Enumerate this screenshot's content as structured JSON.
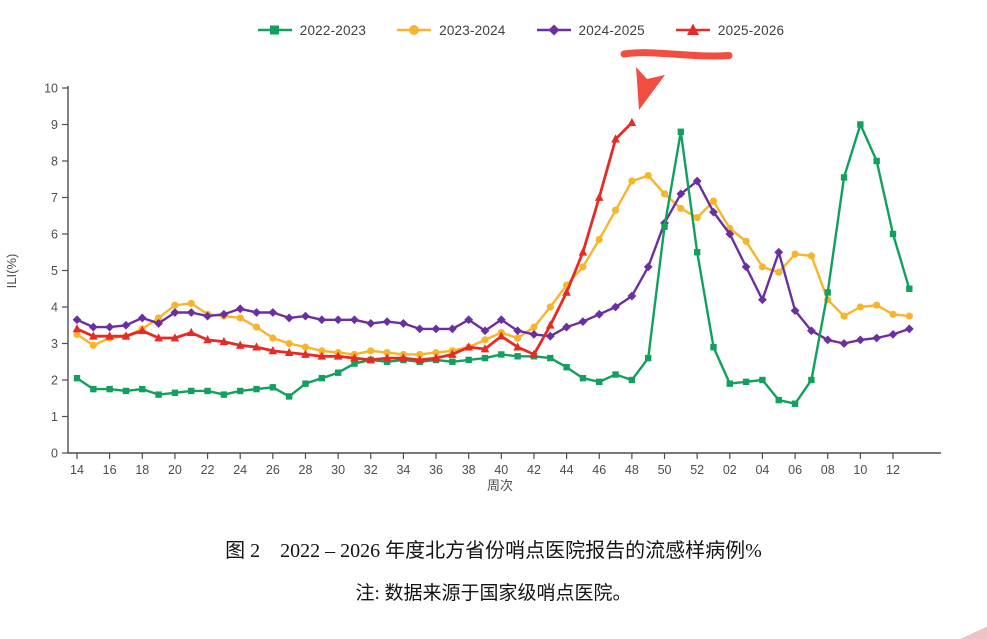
{
  "page": {
    "caption_line1": "图 2　2022 – 2026 年度北方省份哨点医院报告的流感样病例%",
    "caption_line2": "注: 数据来源于国家级哨点医院。"
  },
  "chart_data": {
    "type": "line",
    "title": "",
    "xlabel": "周次",
    "ylabel": "ILI(%)",
    "ylim": [
      0,
      10
    ],
    "y_ticks": [
      0,
      1,
      2,
      3,
      4,
      5,
      6,
      7,
      8,
      9,
      10
    ],
    "grid": false,
    "legend_position": "top",
    "weeks": [
      "14",
      "15",
      "16",
      "17",
      "18",
      "19",
      "20",
      "21",
      "22",
      "23",
      "24",
      "25",
      "26",
      "27",
      "28",
      "29",
      "30",
      "31",
      "32",
      "33",
      "34",
      "35",
      "36",
      "37",
      "38",
      "39",
      "40",
      "41",
      "42",
      "43",
      "44",
      "45",
      "46",
      "47",
      "48",
      "49",
      "50",
      "51",
      "52",
      "01",
      "02",
      "03",
      "04",
      "05",
      "06",
      "07",
      "08",
      "09",
      "10",
      "11",
      "12",
      "13"
    ],
    "series": [
      {
        "name": "2022-2023",
        "color": "#12a05e",
        "marker": "square",
        "line_width": 2.4,
        "values": [
          2.05,
          1.75,
          1.75,
          1.7,
          1.75,
          1.6,
          1.65,
          1.7,
          1.7,
          1.6,
          1.7,
          1.75,
          1.8,
          1.55,
          1.9,
          2.05,
          2.2,
          2.45,
          2.55,
          2.5,
          2.55,
          2.5,
          2.55,
          2.5,
          2.55,
          2.6,
          2.7,
          2.65,
          2.65,
          2.6,
          2.35,
          2.05,
          1.95,
          2.15,
          2.0,
          2.6,
          6.2,
          8.8,
          5.5,
          2.9,
          1.9,
          1.95,
          2.0,
          1.45,
          1.35,
          2.0,
          4.4,
          7.55,
          9.0,
          8.0,
          6.0,
          4.5
        ]
      },
      {
        "name": "2023-2024",
        "color": "#f7b52c",
        "marker": "circle",
        "line_width": 2.4,
        "values": [
          3.25,
          2.95,
          3.15,
          3.2,
          3.4,
          3.7,
          4.05,
          4.1,
          3.8,
          3.75,
          3.7,
          3.45,
          3.15,
          3.0,
          2.9,
          2.8,
          2.75,
          2.7,
          2.8,
          2.75,
          2.7,
          2.7,
          2.75,
          2.8,
          2.9,
          3.1,
          3.3,
          3.15,
          3.45,
          4.0,
          4.6,
          5.1,
          5.85,
          6.65,
          7.45,
          7.6,
          7.1,
          6.7,
          6.45,
          6.9,
          6.15,
          5.8,
          5.1,
          4.95,
          5.45,
          5.4,
          4.2,
          3.75,
          4.0,
          4.05,
          3.8,
          3.75
        ]
      },
      {
        "name": "2024-2025",
        "color": "#6b2fa0",
        "marker": "diamond",
        "line_width": 2.4,
        "values": [
          3.65,
          3.45,
          3.45,
          3.5,
          3.7,
          3.55,
          3.85,
          3.85,
          3.75,
          3.8,
          3.95,
          3.85,
          3.85,
          3.7,
          3.75,
          3.65,
          3.65,
          3.65,
          3.55,
          3.6,
          3.55,
          3.4,
          3.4,
          3.4,
          3.65,
          3.35,
          3.65,
          3.35,
          3.25,
          3.2,
          3.45,
          3.6,
          3.8,
          4.0,
          4.3,
          5.1,
          6.3,
          7.1,
          7.45,
          6.6,
          6.0,
          5.1,
          4.2,
          5.5,
          3.9,
          3.35,
          3.1,
          3.0,
          3.1,
          3.15,
          3.25,
          3.4
        ]
      },
      {
        "name": "2025-2026",
        "color": "#e62b26",
        "marker": "triangle",
        "line_width": 2.8,
        "values": [
          3.4,
          3.2,
          3.2,
          3.2,
          3.35,
          3.15,
          3.15,
          3.3,
          3.1,
          3.05,
          2.95,
          2.9,
          2.8,
          2.75,
          2.7,
          2.65,
          2.65,
          2.6,
          2.55,
          2.6,
          2.6,
          2.55,
          2.6,
          2.7,
          2.9,
          2.85,
          3.2,
          2.9,
          2.7,
          3.5,
          4.4,
          5.5,
          7.0,
          8.6,
          9.05,
          null,
          null,
          null,
          null,
          null,
          null,
          null,
          null,
          null,
          null,
          null,
          null,
          null,
          null,
          null,
          null,
          null
        ]
      }
    ],
    "annotation": {
      "type": "hand-drawn-highlight",
      "color": "#ef3b2c",
      "target_series": "2025-2026",
      "elements": [
        "underline-under-legend-entry",
        "arrow-pointing-to-latest-red-point"
      ]
    }
  }
}
